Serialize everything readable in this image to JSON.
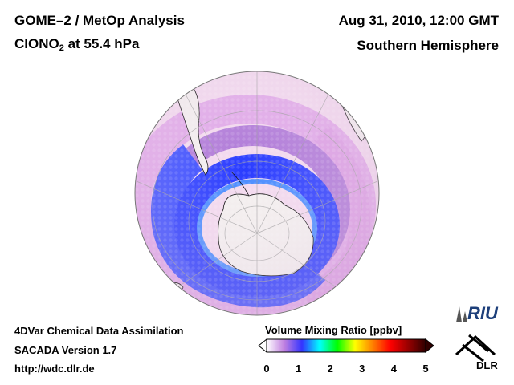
{
  "header": {
    "title_line1": "GOME–2 / MetOp Analysis",
    "title_line2_prefix": "ClONO",
    "title_line2_sub": "2",
    "title_line2_suffix": " at 55.4 hPa",
    "date": "Aug 31, 2010, 12:00 GMT",
    "region": "Southern Hemisphere"
  },
  "footer": {
    "line1": "4DVar Chemical Data Assimilation",
    "line2": "SACADA Version 1.7",
    "line3": "http://wdc.dlr.de"
  },
  "colorbar": {
    "title": "Volume Mixing Ratio [ppbv]",
    "min": 0,
    "max": 5,
    "ticks": [
      "0",
      "1",
      "2",
      "3",
      "4",
      "5"
    ],
    "colors": [
      "#ffffff",
      "#c080e0",
      "#3333ff",
      "#00ffff",
      "#00ff00",
      "#ffff00",
      "#ff8000",
      "#ff0000",
      "#990000",
      "#300000"
    ]
  },
  "logos": {
    "riu": "RIU",
    "dlr": "DLR"
  },
  "map_colors": {
    "background_field": "#f2d8ee",
    "pink": "#e0a8e8",
    "purple": "#b07ad8",
    "blue": "#2a3cff",
    "cyan_edge": "#4a7cff",
    "continent": "#f3eeee",
    "coast": "#000000"
  }
}
